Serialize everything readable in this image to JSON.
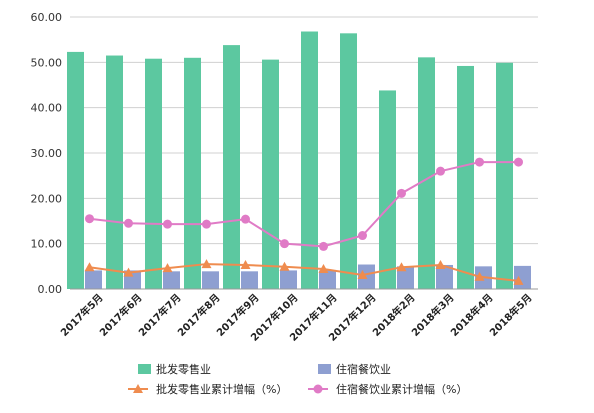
{
  "chart_data": {
    "type": "bar",
    "categories": [
      "2017年5月",
      "2017年6月",
      "2017年7月",
      "2017年8月",
      "2017年9月",
      "2017年10月",
      "2017年11月",
      "2017年12月",
      "2018年2月",
      "2018年3月",
      "2018年4月",
      "2018年5月"
    ],
    "series": [
      {
        "name": "批发零售业",
        "kind": "bar",
        "color": "#5cc8a0",
        "values": [
          52.3,
          51.5,
          50.8,
          51.0,
          53.8,
          50.6,
          56.8,
          56.4,
          43.8,
          51.1,
          49.2,
          49.9
        ]
      },
      {
        "name": "住宿餐饮业",
        "kind": "bar",
        "color": "#8e9fd1",
        "values": [
          4.1,
          4.1,
          3.9,
          3.9,
          3.9,
          4.1,
          4.1,
          5.4,
          5.0,
          5.3,
          5.0,
          5.1
        ]
      },
      {
        "name": "批发零售业累计增幅（%）",
        "kind": "line",
        "marker": "triangle",
        "color": "#ef8c4f",
        "values": [
          4.8,
          3.6,
          4.6,
          5.5,
          5.3,
          4.9,
          4.4,
          3.1,
          4.8,
          5.3,
          2.7,
          1.8
        ]
      },
      {
        "name": "住宿餐饮业累计增幅（%）",
        "kind": "line",
        "marker": "circle",
        "color": "#e07bc6",
        "values": [
          15.5,
          14.5,
          14.3,
          14.3,
          15.4,
          10.0,
          9.4,
          11.8,
          21.1,
          26.0,
          28.0,
          28.0
        ]
      }
    ],
    "yaxis": {
      "min": 0,
      "max": 60,
      "step": 10,
      "tick_labels": [
        "0.00",
        "10.00",
        "20.00",
        "30.00",
        "40.00",
        "50.00",
        "60.00"
      ]
    },
    "grid": true,
    "legend_position": "bottom"
  }
}
